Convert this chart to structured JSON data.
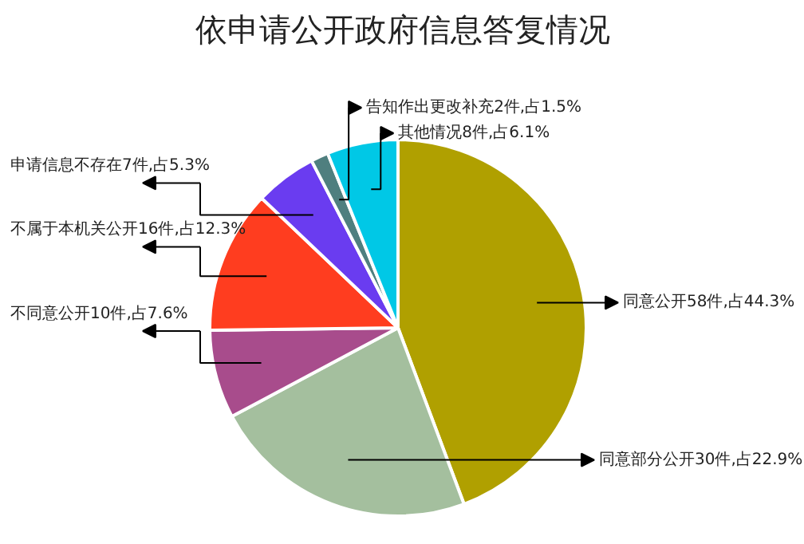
{
  "chart_data": {
    "type": "pie",
    "title": "依申请公开政府信息答复情况",
    "categories": [
      "同意公开58件,占44.3%",
      "同意部分公开30件,占22.9%",
      "不同意公开10件,占7.6%",
      "不属于本机关公开16件,占12.3%",
      "申请信息不存在7件,占5.3%",
      "告知作出更改补充2件,占1.5%",
      "其他情况8件,占6.1%"
    ],
    "values": [
      44.3,
      22.9,
      7.6,
      12.3,
      5.3,
      1.5,
      6.1
    ],
    "colors": [
      "#b0a000",
      "#a4bf9e",
      "#a84c8c",
      "#ff3d1f",
      "#6a3cf0",
      "#4f7f7f",
      "#00c8e6"
    ]
  }
}
